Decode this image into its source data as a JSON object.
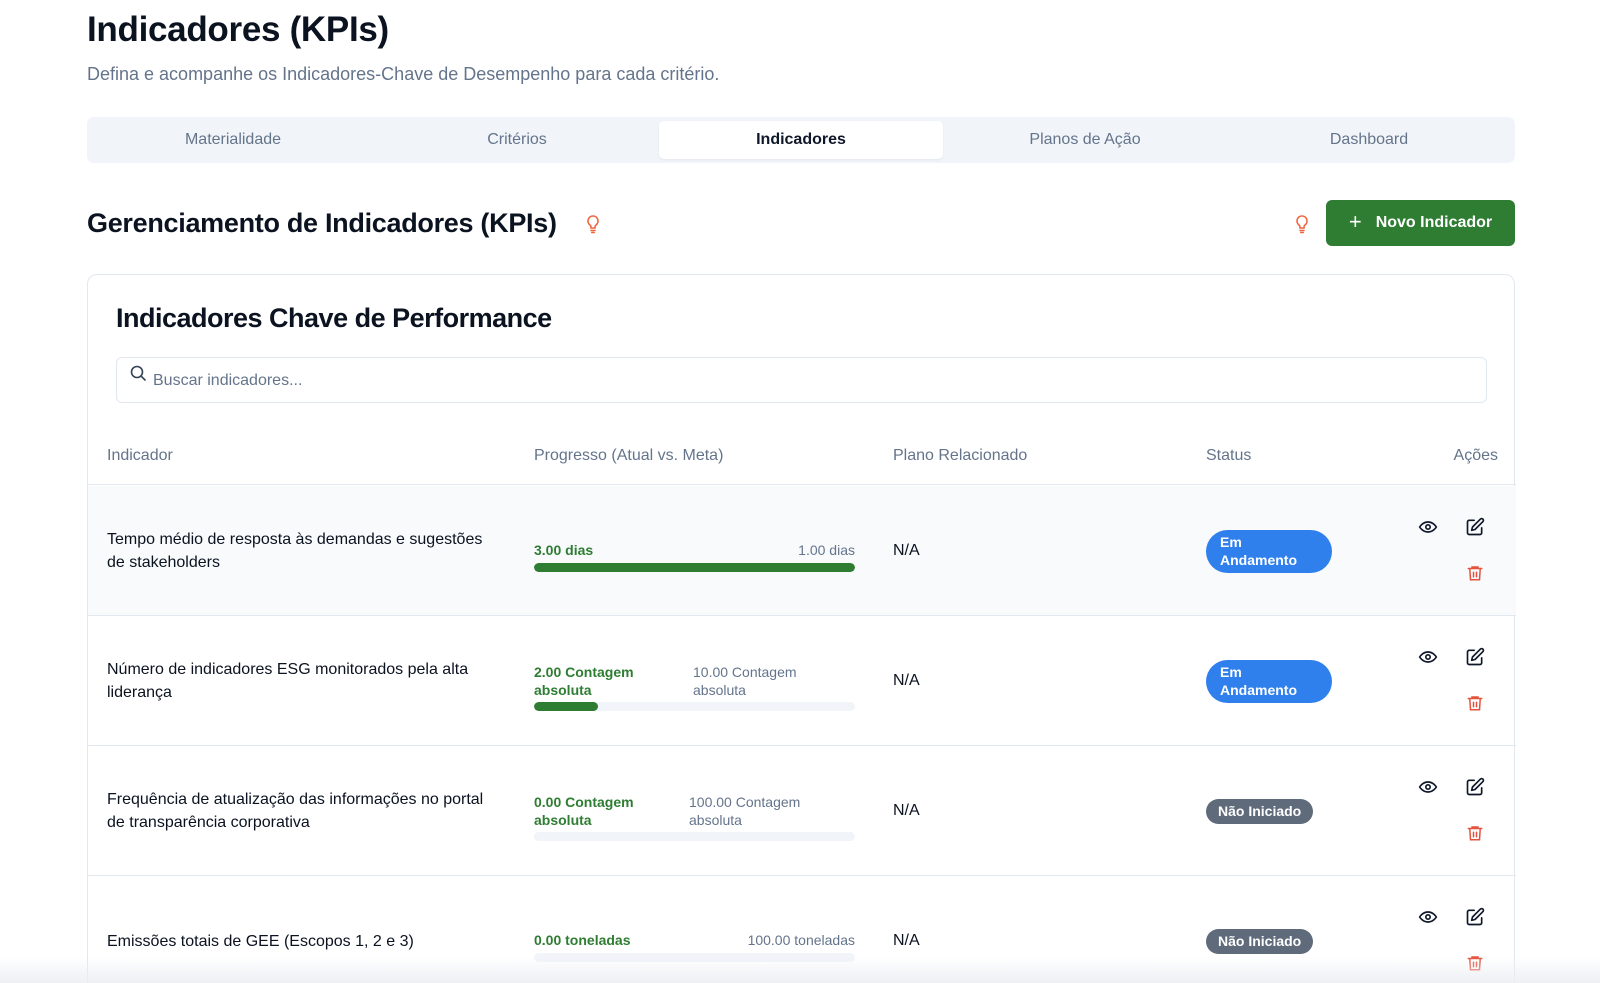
{
  "header": {
    "title": "Indicadores (KPIs)",
    "subtitle": "Defina e acompanhe os Indicadores-Chave de Desempenho para cada critério."
  },
  "tabs": [
    {
      "label": "Materialidade",
      "active": false
    },
    {
      "label": "Critérios",
      "active": false
    },
    {
      "label": "Indicadores",
      "active": true
    },
    {
      "label": "Planos de Ação",
      "active": false
    },
    {
      "label": "Dashboard",
      "active": false
    }
  ],
  "section": {
    "title": "Gerenciamento de Indicadores (KPIs)",
    "new_button_label": "Novo Indicador"
  },
  "card": {
    "title": "Indicadores Chave de Performance",
    "search_placeholder": "Buscar indicadores..."
  },
  "table": {
    "headers": {
      "indicator": "Indicador",
      "progress": "Progresso (Atual vs. Meta)",
      "plan": "Plano Relacionado",
      "status": "Status",
      "actions": "Ações"
    },
    "rows": [
      {
        "name": "Tempo médio de resposta às demandas e sugestões de stakeholders",
        "current": "3.00 dias",
        "target": "1.00 dias",
        "progress": 1.0,
        "plan": "N/A",
        "status": "Em Andamento",
        "status_type": "blue"
      },
      {
        "name": "Número de indicadores ESG monitorados pela alta liderança",
        "current": "2.00 Contagem absoluta",
        "target": "10.00 Contagem absoluta",
        "progress": 0.2,
        "plan": "N/A",
        "status": "Em Andamento",
        "status_type": "blue"
      },
      {
        "name": "Frequência de atualização das informações no portal de transparência corporativa",
        "current": "0.00 Contagem absoluta",
        "target": "100.00 Contagem absoluta",
        "progress": 0.0,
        "plan": "N/A",
        "status": "Não Iniciado",
        "status_type": "gray"
      },
      {
        "name": "Emissões totais de GEE (Escopos 1, 2 e 3)",
        "current": "0.00 toneladas",
        "target": "100.00 toneladas",
        "progress": 0.0,
        "plan": "N/A",
        "status": "Não Iniciado",
        "status_type": "gray"
      }
    ]
  },
  "colors": {
    "accent_green": "#2e7d32",
    "badge_blue": "#2f80ed",
    "badge_gray": "#5f6b7a",
    "danger": "#e5533d",
    "bulb": "#f0643c"
  },
  "icons": {
    "bulb": "lightbulb-icon",
    "search": "search-icon",
    "view": "eye-icon",
    "edit": "edit-icon",
    "delete": "trash-icon",
    "add": "plus-icon"
  }
}
